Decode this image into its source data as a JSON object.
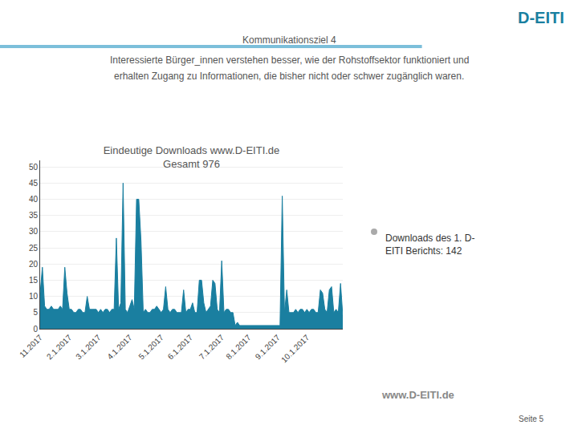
{
  "chart_data": {
    "type": "area",
    "title": "Eindeutige Downloads www.D-EITI.de\nGesamt 976",
    "categories": [
      "11.2017",
      null,
      null,
      null,
      null,
      null,
      null,
      null,
      null,
      null,
      null,
      null,
      null,
      "2.1.2017",
      null,
      null,
      null,
      null,
      null,
      null,
      null,
      null,
      null,
      null,
      null,
      null,
      "3.1.2017",
      null,
      null,
      null,
      null,
      null,
      null,
      null,
      null,
      null,
      null,
      null,
      null,
      null,
      "4.1.2017",
      null,
      null,
      null,
      null,
      null,
      null,
      null,
      null,
      null,
      null,
      null,
      null,
      null,
      "5.1.2017",
      null,
      null,
      null,
      null,
      null,
      null,
      null,
      null,
      null,
      null,
      null,
      null,
      "6.1.2017",
      null,
      null,
      null,
      null,
      null,
      null,
      null,
      null,
      null,
      null,
      null,
      null,
      null,
      "7.1.2017",
      null,
      null,
      null,
      null,
      null,
      null,
      null,
      null,
      null,
      null,
      null,
      "8.1.2017",
      null,
      null,
      null,
      null,
      null,
      null,
      null,
      null,
      null,
      null,
      null,
      null,
      "9.1.2017",
      null,
      null,
      null,
      null,
      null,
      null,
      null,
      null,
      null,
      null,
      null,
      null,
      "10.1.2017",
      null,
      null,
      null,
      null,
      null,
      null,
      null,
      null,
      null,
      null,
      null,
      null,
      null,
      null,
      null,
      null
    ],
    "values": [
      11,
      19,
      7,
      6,
      6,
      7,
      6,
      6,
      6,
      7,
      6,
      19,
      11,
      6,
      6,
      5,
      5,
      6,
      6,
      5,
      5,
      10,
      6,
      6,
      6,
      6,
      5,
      6,
      5,
      6,
      6,
      5,
      6,
      6,
      28,
      6,
      8,
      45,
      6,
      5,
      7,
      9,
      6,
      40,
      40,
      27,
      5,
      6,
      5,
      5,
      6,
      6,
      7,
      6,
      5,
      6,
      13,
      6,
      5,
      6,
      6,
      5,
      5,
      5,
      12,
      5,
      6,
      6,
      8,
      5,
      5,
      15,
      15,
      8,
      5,
      6,
      7,
      15,
      14,
      6,
      5,
      21,
      5,
      6,
      6,
      5,
      5,
      1,
      2,
      1,
      1,
      1,
      1,
      1,
      1,
      1,
      1,
      1,
      1,
      1,
      1,
      1,
      1,
      1,
      1,
      1,
      1,
      1,
      41,
      5,
      12,
      5,
      5,
      5,
      6,
      5,
      6,
      6,
      5,
      6,
      5,
      6,
      6,
      5,
      5,
      12,
      11,
      6,
      5,
      12,
      13,
      5,
      6,
      5,
      14,
      4
    ],
    "color": "#1a7fa0",
    "ylim": [
      0,
      52
    ],
    "yticks": [
      0,
      5,
      10,
      15,
      20,
      25,
      30,
      35,
      40,
      45,
      50
    ],
    "grid": true,
    "annotations": [
      "Kommunikationsziel 4",
      "Interessierte Bürger_innen verstehen besser, wie der Rohstoffsektor funktioniert und",
      "erhalten Zugang zu Informationen, die bisher nicht oder schwer zugänglich waren.",
      "D-EITI",
      "Downloads des 1. D-\nEITI Berichts: 142",
      "www.D-EITI.de",
      "Seite 5"
    ]
  }
}
